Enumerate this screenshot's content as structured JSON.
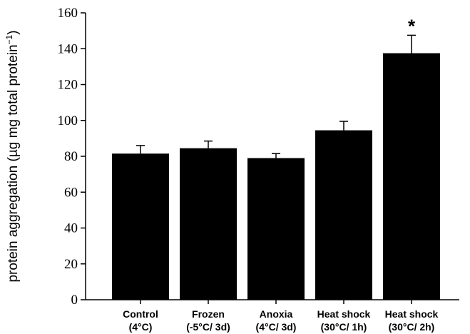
{
  "chart_data": {
    "type": "bar",
    "title": "",
    "xlabel": "",
    "ylabel": "protein aggregation (µg mg total protein",
    "ylabel_superscript": "−1",
    "ylabel_suffix": ")",
    "ylim": [
      0,
      160
    ],
    "yticks": [
      0,
      20,
      40,
      60,
      80,
      100,
      120,
      140,
      160
    ],
    "grid": false,
    "categories": [
      [
        "Control",
        "(4°C)"
      ],
      [
        "Frozen",
        "(-5°C/ 3d)"
      ],
      [
        "Anoxia",
        "(4°C/ 3d)"
      ],
      [
        "Heat shock",
        "(30°C/ 1h)"
      ],
      [
        "Heat shock",
        "(30°C/ 2h)"
      ]
    ],
    "values": [
      81.5,
      84.5,
      79,
      94.5,
      137.5
    ],
    "errors": [
      4.5,
      4,
      2.5,
      5,
      10
    ],
    "annotations": [
      {
        "category_index": 4,
        "text": "*"
      }
    ],
    "colors": {
      "bar": "#000000",
      "axis": "#000000"
    }
  }
}
